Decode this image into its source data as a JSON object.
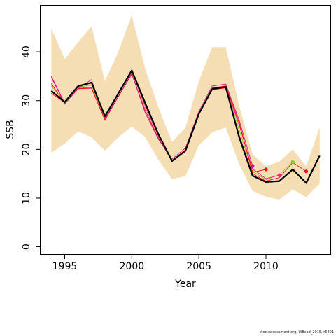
{
  "chart_data": {
    "type": "line",
    "xlabel": "Year",
    "ylabel": "SSB",
    "xlim": [
      1993.2,
      2014.8
    ],
    "ylim": [
      -1.5,
      49.5
    ],
    "x_ticks": [
      1995,
      2000,
      2005,
      2010
    ],
    "y_ticks": [
      0,
      10,
      20,
      30,
      40
    ],
    "grid": false,
    "band_color": "#F5DEB3",
    "confidence_band": {
      "x": [
        1994,
        1995,
        1996,
        1997,
        1998,
        1999,
        2000,
        2001,
        2002,
        2003,
        2004,
        2005,
        2006,
        2007,
        2008,
        2009,
        2010,
        2011,
        2012,
        2013,
        2014
      ],
      "upper": [
        44.8,
        38.5,
        42.0,
        45.2,
        34.0,
        40.0,
        47.5,
        36.5,
        28.5,
        21.5,
        24.5,
        34.0,
        41.0,
        41.0,
        29.0,
        19.0,
        16.5,
        17.5,
        20.0,
        16.5,
        24.5
      ],
      "lower": [
        19.3,
        21.2,
        23.7,
        22.5,
        19.7,
        22.5,
        24.7,
        22.5,
        17.8,
        13.9,
        14.5,
        20.8,
        23.5,
        24.5,
        17.0,
        11.5,
        10.3,
        9.7,
        11.8,
        10.2,
        13.0
      ]
    },
    "main_series": {
      "color": "#000000",
      "x": [
        1994,
        1995,
        1996,
        1997,
        1998,
        1999,
        2000,
        2001,
        2002,
        2003,
        2004,
        2005,
        2006,
        2007,
        2008,
        2009,
        2010,
        2011,
        2012,
        2013,
        2014
      ],
      "y": [
        32.0,
        29.7,
        33.0,
        33.7,
        26.8,
        31.5,
        36.2,
        29.5,
        23.0,
        17.6,
        19.7,
        27.3,
        32.4,
        32.8,
        22.5,
        14.6,
        13.3,
        13.5,
        15.9,
        13.1,
        18.7
      ]
    },
    "retrospective_series": [
      {
        "color": "#DC143C",
        "end_year": 2013,
        "end_value": 15.5,
        "x": [
          1994,
          1995,
          1996,
          1997,
          1998,
          1999,
          2000,
          2001,
          2002,
          2003,
          2004,
          2005,
          2006,
          2007,
          2008,
          2009,
          2010,
          2011,
          2012,
          2013
        ],
        "y": [
          31.5,
          29.6,
          32.5,
          32.7,
          26.5,
          31.2,
          35.8,
          29.0,
          22.8,
          17.8,
          19.8,
          27.2,
          32.2,
          32.6,
          23.0,
          15.0,
          13.5,
          14.2,
          17.3,
          15.5
        ]
      },
      {
        "color": "#7FD01A",
        "end_year": 2012,
        "end_value": 17.4,
        "x": [
          1994,
          1995,
          1996,
          1997,
          1998,
          1999,
          2000,
          2001,
          2002,
          2003,
          2004,
          2005,
          2006,
          2007,
          2008,
          2009,
          2010,
          2011,
          2012
        ],
        "y": [
          33.0,
          29.8,
          32.8,
          33.2,
          26.6,
          31.3,
          36.0,
          29.2,
          23.0,
          18.0,
          19.9,
          27.4,
          32.5,
          33.0,
          24.0,
          15.5,
          13.8,
          14.8,
          17.4
        ]
      },
      {
        "color": "#FF1493",
        "end_year": 2011,
        "end_value": 14.7,
        "x": [
          1994,
          1995,
          1996,
          1997,
          1998,
          1999,
          2000,
          2001,
          2002,
          2003,
          2004,
          2005,
          2006,
          2007,
          2008,
          2009,
          2010,
          2011
        ],
        "y": [
          35.0,
          29.5,
          32.5,
          32.5,
          26.2,
          31.0,
          35.5,
          28.5,
          22.5,
          17.8,
          20.0,
          27.2,
          32.5,
          32.8,
          25.0,
          16.0,
          14.0,
          14.7
        ]
      },
      {
        "color": "#E8E8E8",
        "end_year": 2010,
        "end_value": 16.5,
        "x": [
          1994,
          1995,
          1996,
          1997,
          1998,
          1999,
          2000,
          2001,
          2002,
          2003,
          2004,
          2005,
          2006,
          2007,
          2008,
          2009,
          2010
        ],
        "y": [
          34.2,
          29.5,
          32.3,
          32.7,
          26.1,
          31.0,
          35.6,
          28.3,
          22.3,
          17.9,
          20.1,
          27.5,
          32.7,
          33.1,
          25.4,
          16.4,
          16.5
        ]
      },
      {
        "color": "#FF0000",
        "end_year": 2010,
        "end_value": 15.9,
        "x": [
          1994,
          1995,
          1996,
          1997,
          1998,
          1999,
          2000,
          2001,
          2002,
          2003,
          2004,
          2005,
          2006,
          2007,
          2008,
          2009,
          2010
        ],
        "y": [
          33.5,
          29.4,
          32.4,
          32.6,
          26.0,
          30.9,
          35.4,
          28.0,
          22.2,
          17.7,
          19.9,
          27.3,
          32.6,
          33.0,
          25.5,
          15.3,
          15.9
        ]
      },
      {
        "color": "#C71585",
        "end_year": 2009,
        "end_value": 16.6,
        "x": [
          1994,
          1995,
          1996,
          1997,
          1998,
          1999,
          2000,
          2001,
          2002,
          2003,
          2004,
          2005,
          2006,
          2007,
          2008,
          2009
        ],
        "y": [
          34.8,
          29.3,
          32.5,
          34.3,
          26.3,
          30.8,
          35.6,
          27.5,
          22.0,
          18.0,
          20.3,
          27.8,
          33.0,
          33.4,
          26.0,
          16.6
        ]
      }
    ]
  },
  "footer": {
    "text": "stockassessment.org, WBcod_2015, r6801"
  }
}
